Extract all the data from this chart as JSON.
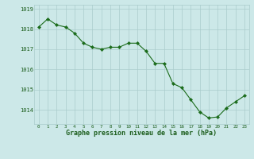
{
  "x": [
    0,
    1,
    2,
    3,
    4,
    5,
    6,
    7,
    8,
    9,
    10,
    11,
    12,
    13,
    14,
    15,
    16,
    17,
    18,
    19,
    20,
    21,
    22,
    23
  ],
  "y": [
    1018.1,
    1018.5,
    1018.2,
    1018.1,
    1017.8,
    1017.3,
    1017.1,
    1017.0,
    1017.1,
    1017.1,
    1017.3,
    1017.3,
    1016.9,
    1016.3,
    1016.3,
    1015.3,
    1015.1,
    1014.5,
    1013.9,
    1013.6,
    1013.65,
    1014.1,
    1014.4,
    1014.7
  ],
  "line_color": "#1a6b1a",
  "marker_color": "#1a6b1a",
  "bg_color": "#cce8e8",
  "grid_color": "#aacccc",
  "xlabel": "Graphe pression niveau de la mer (hPa)",
  "xlabel_color": "#1a5c1a",
  "tick_color": "#1a5c1a",
  "ylim": [
    1013.3,
    1019.2
  ],
  "yticks": [
    1014,
    1015,
    1016,
    1017,
    1018,
    1019
  ],
  "xticks": [
    0,
    1,
    2,
    3,
    4,
    5,
    6,
    7,
    8,
    9,
    10,
    11,
    12,
    13,
    14,
    15,
    16,
    17,
    18,
    19,
    20,
    21,
    22,
    23
  ]
}
